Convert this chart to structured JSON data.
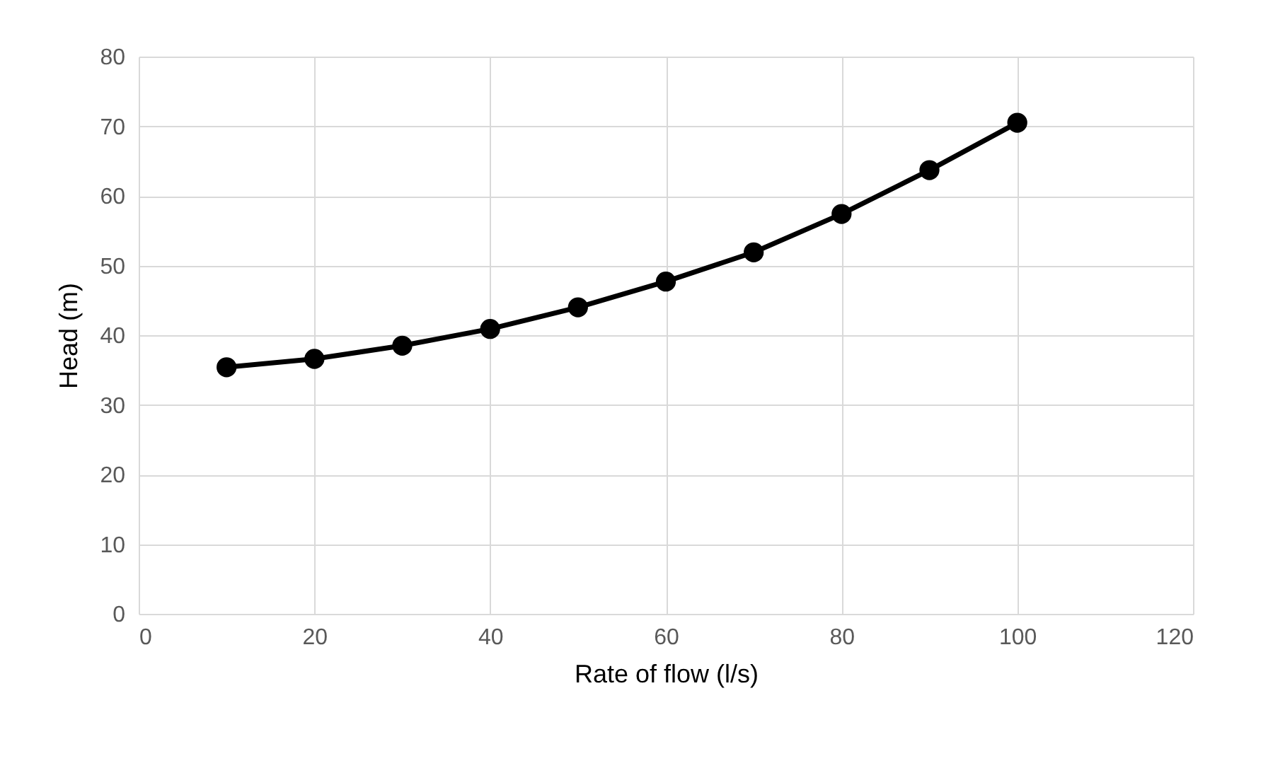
{
  "chart_data": {
    "type": "line",
    "xlabel": "Rate of flow (l/s)",
    "ylabel": "Head (m)",
    "x": [
      10,
      20,
      30,
      40,
      50,
      60,
      70,
      80,
      90,
      100
    ],
    "series": [
      {
        "color": "#000000",
        "values": [
          35.4,
          36.6,
          38.5,
          40.9,
          44.0,
          47.7,
          51.9,
          57.4,
          63.7,
          70.5
        ]
      }
    ],
    "xlim": [
      0,
      120
    ],
    "xticks": [
      0,
      20,
      40,
      60,
      80,
      100,
      120
    ],
    "ylim": [
      0,
      80
    ],
    "yticks": [
      0,
      10,
      20,
      30,
      40,
      50,
      60,
      70,
      80
    ],
    "grid": true,
    "marker": "circle",
    "line_style": "solid",
    "legend": false
  }
}
